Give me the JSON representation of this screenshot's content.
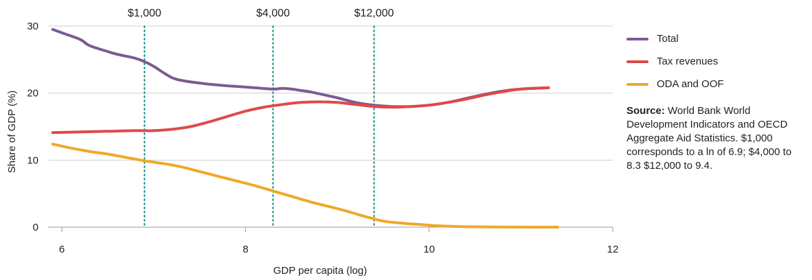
{
  "chart_data": {
    "type": "line",
    "xlabel": "GDP per capita (log)",
    "ylabel": "Share of GDP (%)",
    "xlim": [
      5.85,
      12
    ],
    "ylim": [
      0,
      30
    ],
    "xticks": [
      6,
      8,
      10,
      12
    ],
    "yticks": [
      0,
      10,
      20,
      30
    ],
    "grid": "horizontal",
    "legend_position": "right",
    "vertical_lines": [
      {
        "x": 6.9,
        "label": "$1,000"
      },
      {
        "x": 8.3,
        "label": "$4,000"
      },
      {
        "x": 9.4,
        "label": "$12,000"
      }
    ],
    "series": [
      {
        "name": "Total",
        "color": "#7b5b93",
        "x": [
          5.9,
          6.0,
          6.2,
          6.3,
          6.5,
          6.6,
          6.8,
          6.9,
          7.0,
          7.1,
          7.2,
          7.3,
          7.5,
          7.7,
          7.9,
          8.1,
          8.3,
          8.4,
          8.5,
          8.6,
          8.7,
          8.8,
          9.0,
          9.2,
          9.4,
          9.6,
          9.8,
          10.0,
          10.2,
          10.4,
          10.6,
          10.8,
          11.0,
          11.3
        ],
        "values": [
          29.5,
          29.0,
          28.0,
          27.1,
          26.2,
          25.8,
          25.2,
          24.7,
          24.0,
          23.1,
          22.3,
          21.9,
          21.5,
          21.2,
          21.0,
          20.8,
          20.6,
          20.7,
          20.6,
          20.4,
          20.2,
          19.9,
          19.3,
          18.6,
          18.2,
          18.0,
          18.0,
          18.2,
          18.6,
          19.2,
          19.8,
          20.3,
          20.6,
          20.8
        ]
      },
      {
        "name": "Tax revenues",
        "color": "#e04848",
        "x": [
          5.9,
          6.2,
          6.5,
          6.8,
          7.0,
          7.2,
          7.4,
          7.6,
          7.8,
          8.0,
          8.2,
          8.4,
          8.6,
          8.8,
          9.0,
          9.2,
          9.4,
          9.6,
          9.8,
          10.0,
          10.2,
          10.4,
          10.6,
          10.8,
          11.0,
          11.3
        ],
        "values": [
          14.1,
          14.2,
          14.3,
          14.4,
          14.4,
          14.6,
          15.0,
          15.7,
          16.5,
          17.3,
          17.9,
          18.3,
          18.6,
          18.7,
          18.6,
          18.3,
          18.0,
          17.9,
          18.0,
          18.2,
          18.6,
          19.1,
          19.7,
          20.2,
          20.6,
          20.8
        ]
      },
      {
        "name": "ODA and OOF",
        "color": "#f0a828",
        "x": [
          5.9,
          6.1,
          6.3,
          6.5,
          6.7,
          6.9,
          7.1,
          7.3,
          7.5,
          7.7,
          7.9,
          8.1,
          8.3,
          8.5,
          8.7,
          8.9,
          9.1,
          9.3,
          9.5,
          9.7,
          9.9,
          10.1,
          10.3,
          10.5,
          10.7,
          10.9,
          11.1,
          11.4
        ],
        "values": [
          12.4,
          11.8,
          11.3,
          10.9,
          10.4,
          9.9,
          9.5,
          9.0,
          8.3,
          7.6,
          6.9,
          6.2,
          5.4,
          4.6,
          3.8,
          3.1,
          2.4,
          1.6,
          0.9,
          0.6,
          0.4,
          0.2,
          0.1,
          0.05,
          0.02,
          0.01,
          0.0,
          0.0
        ]
      }
    ]
  },
  "source": {
    "label": "Source:",
    "text": " World Bank World Development Indicators and OECD Aggregate Aid Statistics. $1,000 corresponds to a ln of 6.9; $4,000 to 8.3 $12,000 to 9.4."
  }
}
